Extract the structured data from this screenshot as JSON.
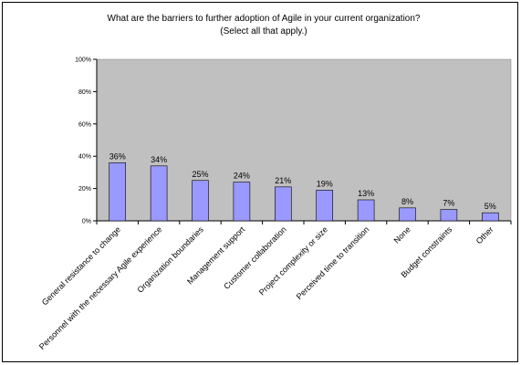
{
  "chart_data": {
    "type": "bar",
    "title": "What are the barriers to further adoption of Agile in your current organization?",
    "subtitle": "(Select all that apply.)",
    "categories": [
      "General resistance to change",
      "Personnel with the necessary Agile experience",
      "Organization boundaries",
      "Management support",
      "Customer collaboration",
      "Project complexity or size",
      "Perceived time to transition",
      "None",
      "Budget constraints",
      "Other"
    ],
    "values": [
      36,
      34,
      25,
      24,
      21,
      19,
      13,
      8,
      7,
      5
    ],
    "data_labels": [
      "36%",
      "34%",
      "25%",
      "24%",
      "21%",
      "19%",
      "13%",
      "8%",
      "7%",
      "5%"
    ],
    "y_ticks": [
      "0%",
      "20%",
      "40%",
      "60%",
      "80%",
      "100%"
    ],
    "ylim": [
      0,
      100
    ],
    "grid": false,
    "legend": "none",
    "colors": {
      "plot_background": "#c0c0c0",
      "bar_fill": "#9999ff",
      "bar_stroke": "#000000"
    }
  }
}
